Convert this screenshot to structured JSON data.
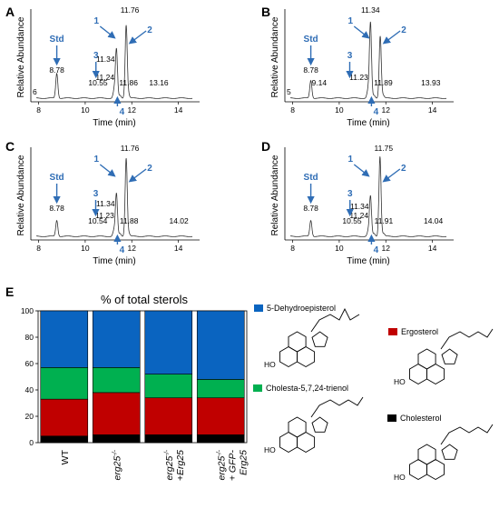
{
  "chromatograms": [
    {
      "letter": "A",
      "ylabel": "Relative Abundance",
      "xlabel": "Time (min)",
      "xticks": [
        "8",
        "10",
        "12",
        "14"
      ],
      "xtick_values": [
        8,
        10,
        12,
        14
      ],
      "axis_edge_label": "6",
      "peaks": [
        {
          "time": 8.78,
          "label": "8.78",
          "height": 0.28,
          "marker": "Std"
        },
        {
          "time": 10.55,
          "label": "10.55",
          "height": 0.0,
          "marker": ""
        },
        {
          "time": 11.24,
          "label": "11.24",
          "height": 0.08,
          "marker": "3"
        },
        {
          "time": 11.34,
          "label": "11.34",
          "height": 0.55,
          "marker": "1"
        },
        {
          "time": 11.5,
          "label": "",
          "height": 0.03,
          "marker": "4"
        },
        {
          "time": 11.76,
          "label": "11.76",
          "height": 0.82,
          "marker": "2"
        },
        {
          "time": 11.86,
          "label": "11.86",
          "height": 0.04,
          "marker": ""
        },
        {
          "time": 13.16,
          "label": "13.16",
          "height": 0.0,
          "marker": ""
        }
      ]
    },
    {
      "letter": "B",
      "ylabel": "Relative Abundance",
      "xlabel": "Time (min)",
      "xticks": [
        "8",
        "10",
        "12",
        "14"
      ],
      "xtick_values": [
        8,
        10,
        12,
        14
      ],
      "axis_edge_label": "5",
      "peaks": [
        {
          "time": 8.78,
          "label": "8.78",
          "height": 0.2,
          "marker": "Std"
        },
        {
          "time": 9.14,
          "label": "9.14",
          "height": 0.0,
          "marker": ""
        },
        {
          "time": 11.23,
          "label": "11.23",
          "height": 0.08,
          "marker": "3"
        },
        {
          "time": 11.34,
          "label": "11.34",
          "height": 0.85,
          "marker": "1"
        },
        {
          "time": 11.5,
          "label": "",
          "height": 0.03,
          "marker": "4"
        },
        {
          "time": 11.76,
          "label": "",
          "height": 0.7,
          "marker": "2"
        },
        {
          "time": 11.89,
          "label": "11.89",
          "height": 0.03,
          "marker": ""
        },
        {
          "time": 13.93,
          "label": "13.93",
          "height": 0.0,
          "marker": ""
        }
      ]
    },
    {
      "letter": "C",
      "ylabel": "Relative Abundance",
      "xlabel": "Time (min)",
      "xticks": [
        "8",
        "10",
        "12",
        "14"
      ],
      "xtick_values": [
        8,
        10,
        12,
        14
      ],
      "axis_edge_label": "",
      "peaks": [
        {
          "time": 8.78,
          "label": "8.78",
          "height": 0.18,
          "marker": "Std"
        },
        {
          "time": 10.54,
          "label": "10.54",
          "height": 0.0,
          "marker": ""
        },
        {
          "time": 11.23,
          "label": "11.23",
          "height": 0.06,
          "marker": "3"
        },
        {
          "time": 11.34,
          "label": "11.34",
          "height": 0.48,
          "marker": "1"
        },
        {
          "time": 11.5,
          "label": "",
          "height": 0.03,
          "marker": "4"
        },
        {
          "time": 11.76,
          "label": "11.76",
          "height": 0.88,
          "marker": "2"
        },
        {
          "time": 11.88,
          "label": "11.88",
          "height": 0.03,
          "marker": ""
        },
        {
          "time": 14.02,
          "label": "14.02",
          "height": 0.0,
          "marker": ""
        }
      ]
    },
    {
      "letter": "D",
      "ylabel": "Relative Abundance",
      "xlabel": "Time (min)",
      "xticks": [
        "8",
        "10",
        "12",
        "14"
      ],
      "xtick_values": [
        8,
        10,
        12,
        14
      ],
      "axis_edge_label": "",
      "peaks": [
        {
          "time": 8.78,
          "label": "8.78",
          "height": 0.18,
          "marker": "Std"
        },
        {
          "time": 10.55,
          "label": "10.55",
          "height": 0.0,
          "marker": ""
        },
        {
          "time": 11.24,
          "label": "11.24",
          "height": 0.05,
          "marker": "3"
        },
        {
          "time": 11.34,
          "label": "11.34",
          "height": 0.45,
          "marker": "1"
        },
        {
          "time": 11.5,
          "label": "",
          "height": 0.03,
          "marker": "4"
        },
        {
          "time": 11.75,
          "label": "11.75",
          "height": 0.9,
          "marker": "2"
        },
        {
          "time": 11.91,
          "label": "11.91",
          "height": 0.03,
          "marker": ""
        },
        {
          "time": 14.04,
          "label": "14.04",
          "height": 0.0,
          "marker": ""
        }
      ]
    }
  ],
  "chart_data": {
    "type": "bar",
    "panel_letter": "E",
    "title": "% of total sterols",
    "categories": [
      "WT",
      "erg25-/-",
      "erg25-/- +Erg25",
      "erg25-/-+ GFP-Erg25"
    ],
    "category_lines": [
      [
        "WT"
      ],
      [
        "erg25",
        "-/-"
      ],
      [
        "erg25",
        "-/-",
        "+Erg25"
      ],
      [
        "erg25",
        "-/-",
        "+ GFP-",
        "Erg25"
      ]
    ],
    "ylim": [
      0,
      100
    ],
    "yticks": [
      0,
      20,
      40,
      60,
      80,
      100
    ],
    "stacked": true,
    "grid": false,
    "series": [
      {
        "name": "Cholesterol",
        "color": "#000000",
        "values": [
          5,
          6,
          6,
          6
        ]
      },
      {
        "name": "Ergosterol",
        "color": "#c00000",
        "values": [
          28,
          32,
          28,
          28
        ]
      },
      {
        "name": "Cholesta-5,7,24-trienol",
        "color": "#00b050",
        "values": [
          24,
          19,
          18,
          14
        ]
      },
      {
        "name": "5-Dehydroepisterol",
        "color": "#0a64c0",
        "values": [
          43,
          43,
          48,
          52
        ]
      }
    ]
  },
  "structure_labels": {
    "hydroxyl": "HO"
  },
  "colors": {
    "marker_blue": "#2f6db5"
  }
}
